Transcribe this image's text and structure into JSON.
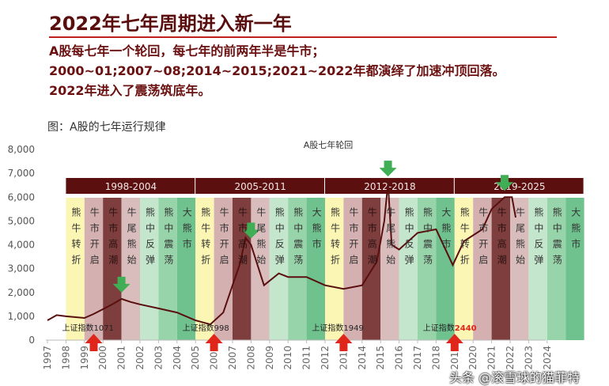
{
  "header": {
    "title": "2022年七年周期进入新一年",
    "bullets": [
      "A股每七年一个轮回，每七年的前两年半是牛市；",
      "2000~01;2007~08;2014~2015;2021~2022年都演绎了加速冲顶回落。",
      "2022年进入了震荡筑底年。"
    ]
  },
  "caption": "图：A股的七年运行规律",
  "watermark": "头条 @滚雪球的猫菲特",
  "chart_data": {
    "type": "line",
    "title": "A股七年轮回",
    "ylim": [
      0,
      8000
    ],
    "yticks": [
      "0",
      "1,000",
      "2,000",
      "3,000",
      "4,000",
      "5,000",
      "6,000",
      "7,000",
      "8,000"
    ],
    "xticks": [
      "1997",
      "1998",
      "1999",
      "2000",
      "2001",
      "2002",
      "2003",
      "2004",
      "2005",
      "2006",
      "2007",
      "2008",
      "2009",
      "2010",
      "2011",
      "2012",
      "2013",
      "2014",
      "2015",
      "2016",
      "2017",
      "2018",
      "2019",
      "2020",
      "2021",
      "2022",
      "2023",
      "2024"
    ],
    "cycles": [
      "1998-2004",
      "2005-2011",
      "2012-2018",
      "2019-2025"
    ],
    "phases": [
      "熊牛转折",
      "牛市开启",
      "牛市高潮",
      "牛尾熊始",
      "熊中反弹",
      "熊中震荡",
      "大熊市"
    ],
    "phase_colors": [
      "#fbf6b4",
      "#d4b0b0",
      "#7e3e3e",
      "#d9bcbc",
      "#c3e6cc",
      "#98d4aa",
      "#6fc18e"
    ],
    "series": {
      "x": [
        1997,
        1997.5,
        1998,
        1999,
        1999.5,
        2000.5,
        2001,
        2001.5,
        2002,
        2003,
        2004,
        2005,
        2005.8,
        2006.5,
        2007,
        2007.4,
        2007.7,
        2008,
        2008.7,
        2009.5,
        2010,
        2011,
        2012,
        2013,
        2014,
        2014.8,
        2015.2,
        2015.4,
        2015.6,
        2016,
        2017,
        2018,
        2018.9,
        2019.5,
        2020.5,
        2021,
        2021.7,
        2022.1,
        2022.3
      ],
      "y": [
        830,
        1050,
        1000,
        930,
        1100,
        1500,
        1730,
        1600,
        1500,
        1330,
        1160,
        830,
        660,
        1160,
        2300,
        3200,
        4300,
        4000,
        2300,
        2800,
        2650,
        2650,
        2300,
        2150,
        2300,
        3300,
        5000,
        6600,
        4000,
        3800,
        4500,
        4650,
        3150,
        4150,
        4650,
        5500,
        6000,
        6000,
        5150
      ]
    },
    "bottoms": [
      {
        "x": 1999.5,
        "label": "上证指数",
        "value": "1071"
      },
      {
        "x": 2006,
        "label": "上证指数",
        "value": "998"
      },
      {
        "x": 2013,
        "label": "上证指数",
        "value": "1949"
      },
      {
        "x": 2019,
        "label": "上证指数",
        "value": "2440"
      }
    ],
    "tops": [
      2001,
      2008,
      2015.4,
      2021.7
    ],
    "colors": {
      "line": "#5a0f0f",
      "cycle_bar": "#5c0f0f",
      "up_arrow": "#e0261b",
      "down_arrow": "#3fae54"
    }
  }
}
